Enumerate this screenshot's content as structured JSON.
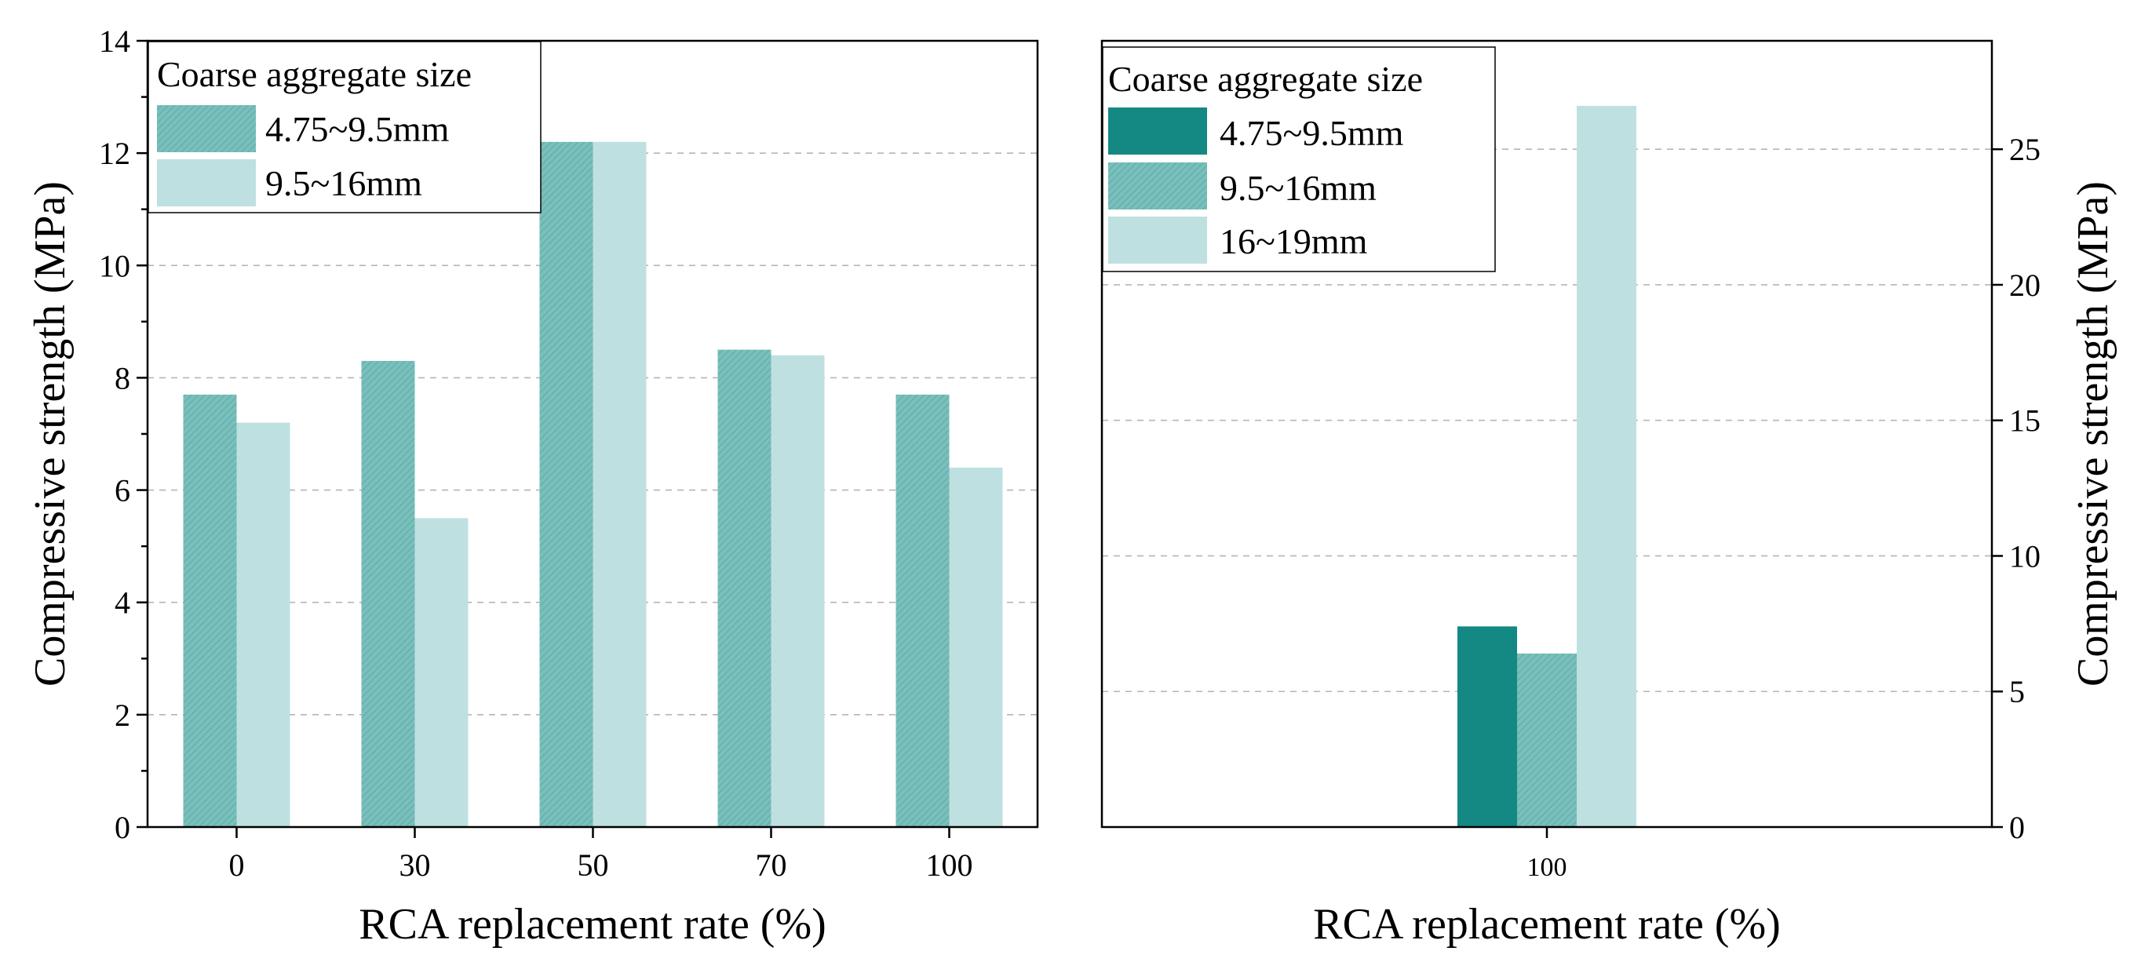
{
  "chart_data": [
    {
      "type": "bar",
      "categories": [
        "0",
        "30",
        "50",
        "70",
        "100"
      ],
      "series": [
        {
          "name": "4.75~9.5mm",
          "values": [
            7.7,
            8.3,
            12.2,
            8.5,
            7.7
          ],
          "color": "#79bfbb",
          "hatched": true
        },
        {
          "name": "9.5~16mm",
          "values": [
            7.2,
            5.5,
            12.2,
            8.4,
            6.4
          ],
          "color": "#bfe0e0",
          "hatched": false
        }
      ],
      "title": "",
      "legend_title": "Coarse aggregate size",
      "xlabel": "RCA replacement rate (%)",
      "ylabel": "Compressive strength (MPa)",
      "ylim": [
        0,
        14
      ],
      "yticks": [
        0,
        2,
        4,
        6,
        8,
        10,
        12,
        14
      ],
      "legend_position": "top-left",
      "grid": true
    },
    {
      "type": "bar",
      "categories": [
        "100"
      ],
      "series": [
        {
          "name": "4.75~9.5mm",
          "values": [
            7.4
          ],
          "color": "#148883",
          "hatched": false
        },
        {
          "name": "9.5~16mm",
          "values": [
            6.4
          ],
          "color": "#79bfbb",
          "hatched": true
        },
        {
          "name": "16~19mm",
          "values": [
            26.6
          ],
          "color": "#bfe0e0",
          "hatched": false
        }
      ],
      "title": "",
      "legend_title": "Coarse aggregate size",
      "xlabel": "RCA replacement rate (%)",
      "ylabel": "Compressive strength (MPa)",
      "ylim": [
        0,
        29
      ],
      "yticks": [
        0,
        5,
        10,
        15,
        20,
        25
      ],
      "y_axis_side": "right",
      "legend_position": "top-left",
      "grid": true
    }
  ]
}
